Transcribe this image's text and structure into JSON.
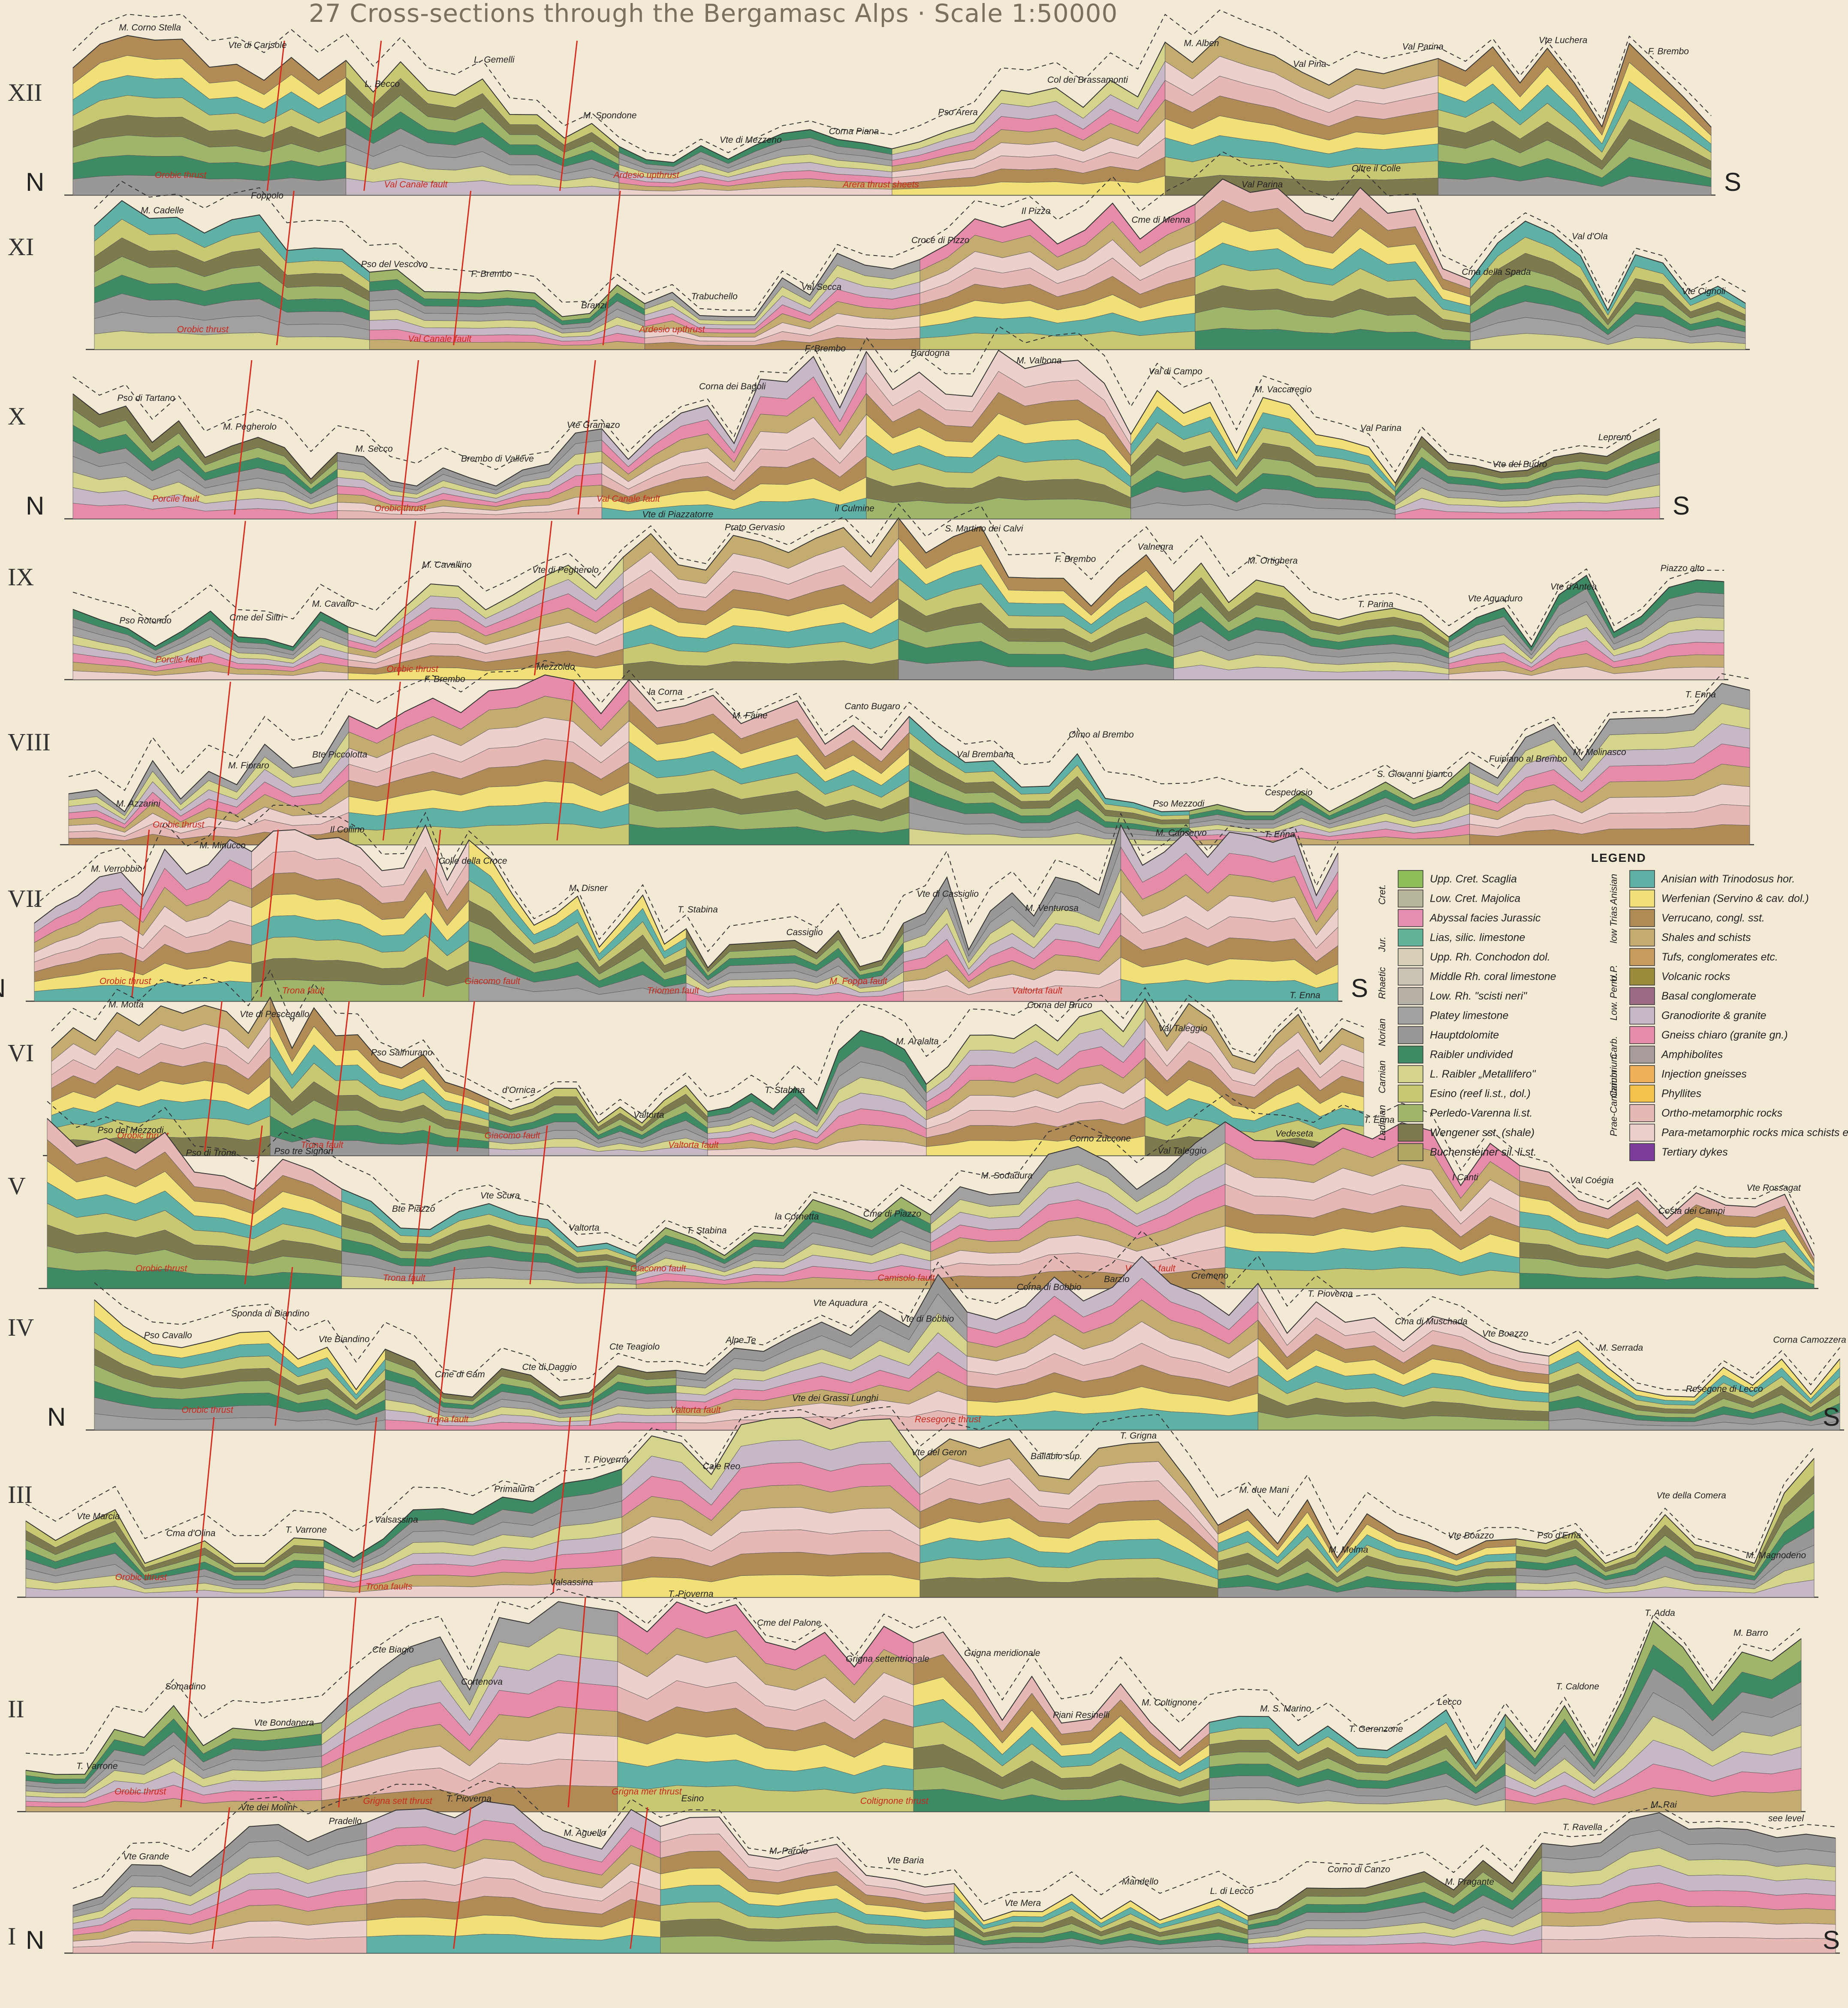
{
  "title": "27 Cross-sections through the Bergamasc Alps · Scale 1:50000",
  "direction": {
    "north": "N",
    "south": "S"
  },
  "colors": {
    "upp_cret_scaglia": "#8fbf5a",
    "low_cret_majolica": "#b7b59a",
    "abyssal_jurassic": "#e48fb1",
    "lias_silic": "#63b39a",
    "upp_rh_conchodon": "#d9cfb6",
    "middle_rh_coral": "#c9c3b6",
    "low_rh_scisti_neri": "#b6b0a6",
    "platey_limestone": "#a3a0a0",
    "hauptdolomite": "#999896",
    "raibler_undivided": "#3e8a65",
    "l_raibler": "#d4d48c",
    "esino": "#c9c872",
    "perledo_varenna": "#9fb56a",
    "wengener": "#7d7a4e",
    "buchensteiner": "#b2a664",
    "anisian": "#5fb0a5",
    "werfenian": "#f1df78",
    "verrucano": "#b08b56",
    "shales_schists": "#c4ab70",
    "tufs": "#c69c5c",
    "volcanic": "#9a8c3a",
    "basal_cong": "#9a6b83",
    "granodiorite": "#c7b8c5",
    "gneiss_chiaro": "#e78ca8",
    "amphibolites": "#a79c9b",
    "injection_gneisses": "#f0b05a",
    "phyllites": "#f2c24a",
    "ortho_meta": "#e6b8b5",
    "para_meta": "#ecd0cb",
    "tertiary_dykes": "#7b3c9c",
    "fault_red": "#d82a1e"
  },
  "sections": [
    {
      "id": "XII",
      "labels": [
        "M. Corno Stella",
        "Vte di Carisole",
        "L. Becco",
        "L. Gemelli",
        "M. Spondone",
        "Vte di Mezzeno",
        "Corna Piana",
        "Pso Arera",
        "Col dei Brassamonti",
        "M. Alben",
        "Val Pina",
        "Val Parina",
        "Vte Luchera",
        "F. Brembo"
      ],
      "red_labels": [
        "Orobic thrust",
        "Val Canale fault",
        "Ardesio upthrust",
        "Arera thrust sheets"
      ],
      "dir_n": "N",
      "dir_s": "S"
    },
    {
      "id": "XI",
      "labels": [
        "M. Cadelle",
        "Foppolo",
        "Pso del Vescovo",
        "F. Brembo",
        "Branzi",
        "Trabuchello",
        "Val Secca",
        "Croce di Pizzo",
        "Il Pizzo",
        "Cme di Menna",
        "Val Parina",
        "Oltre il Colle",
        "Cma della Spada",
        "Val d'Ola",
        "Vte Cignoli"
      ],
      "red_labels": [
        "Orobic thrust",
        "Val Canale fault",
        "Ardesio upthrust"
      ]
    },
    {
      "id": "X",
      "labels": [
        "Pso di Tartano",
        "M. Pegherolo",
        "M. Secco",
        "Brembo di Valleve",
        "Vte Gramazo",
        "Corna dei Bagoli",
        "F. Brembo",
        "Bordogna",
        "M. Valbona",
        "Val di Campo",
        "M. Vaccaregio",
        "Val Parina",
        "Vte del Budro",
        "Lepreno"
      ],
      "red_labels": [
        "Porcile fault",
        "Orobic thrust",
        "Val Canale fault"
      ],
      "dir_n": "N",
      "dir_s": "S"
    },
    {
      "id": "IX",
      "labels": [
        "Pso Rotondo",
        "Cme del Siltri",
        "M. Cavallo",
        "M. Cavallino",
        "Vte di Pegherolo",
        "Vte di Piazzatorre",
        "Prato Gervasio",
        "il Culmine",
        "S. Martino dei Calvi",
        "F. Brembo",
        "Valnegra",
        "M. Ortighera",
        "T. Parina",
        "Vte Aquaduro",
        "Vte d'Antea",
        "Piazzo alto"
      ],
      "red_labels": [
        "Porcile fault",
        "Orobic thrust"
      ]
    },
    {
      "id": "VIII",
      "labels": [
        "M. Azzarini",
        "M. Fioraro",
        "Bte Piccolotta",
        "F. Brembo",
        "Mezzoldo",
        "la Corna",
        "M. Faine",
        "Canto Bugaro",
        "Val Brembana",
        "Olmo al Brembo",
        "Pso Mezzodi",
        "Cespedosio",
        "S. Giovanni bianco",
        "Fuipiano al Brembo",
        "M. Molinasco",
        "T. Enna"
      ],
      "red_labels": [
        "Orobic thrust"
      ]
    },
    {
      "id": "VII",
      "labels": [
        "M. Verrobbio",
        "M. Minucco",
        "Il Collino",
        "Colle della Croce",
        "M. Disner",
        "T. Stabina",
        "Cassiglio",
        "Vte di Cassiglio",
        "M. Venturosa",
        "M. Canservo",
        "T. Enna"
      ],
      "red_labels": [
        "Orobic thrust",
        "Trona fault",
        "Giacomo fault",
        "Triomen fault",
        "M. Foppa fault",
        "Valtorta fault"
      ],
      "dir_n": "N",
      "dir_s": "S"
    },
    {
      "id": "VI",
      "labels": [
        "M. Motta",
        "Vte di Pescegallo",
        "Pso Salmurano",
        "d'Ornica",
        "Valtorta",
        "T. Stabina",
        "M. Aralalta",
        "Corna del Bruco",
        "Val Taleggio",
        "T. Enna"
      ],
      "red_labels": [
        "Orobic thrust",
        "Trona fault",
        "Giacomo fault",
        "Valtorta fault"
      ]
    },
    {
      "id": "V",
      "labels": [
        "Pso del Mezzodi",
        "Pso di Trona",
        "Pso tre Signori",
        "Bte Piazzo",
        "Vte Scura",
        "Valtorta",
        "T. Stabina",
        "la Cornetta",
        "Cme di Piazzo",
        "M. Sodadura",
        "Corno Zuccone",
        "Val Taleggio",
        "Vedeseta",
        "T. Enna",
        "I Canti",
        "Val Coégia",
        "Costa dei Campi",
        "Vte Rossagat"
      ],
      "red_labels": [
        "Orobic thrust",
        "Trona fault",
        "Giacomo fault",
        "Camisolo fault",
        "Valtorta fault"
      ]
    },
    {
      "id": "IV",
      "labels": [
        "Pso Cavallo",
        "Sponda di Biandino",
        "Vte Biandino",
        "Cme di Cam",
        "Cte di Daggio",
        "Cte Teagiolo",
        "Alpe Te",
        "Vte Aquadura",
        "Vte di Bobbio",
        "Corna di Bobbio",
        "Barzio",
        "Cremeno",
        "T. Pioverna",
        "Cma di Muschada",
        "Vte Boazzo",
        "M. Serrada",
        "Resegone di Lecco",
        "Corna Camozzera"
      ],
      "red_labels": [
        "Orobic thrust",
        "Trona fault",
        "Valtorta fault",
        "Resegone thrust"
      ],
      "dir_n": "N",
      "dir_s": "S"
    },
    {
      "id": "III",
      "labels": [
        "Vte Marcia",
        "Cma d'Olina",
        "T. Varrone",
        "Valsassina",
        "Primaluna",
        "T. Pioverna",
        "Cale Reo",
        "Vte dei Grassi Lunghi",
        "Vte del Geron",
        "Ballabio sup.",
        "T. Grigna",
        "M. due Mani",
        "M. Melma",
        "Vte Boazzo",
        "Pso d'Erna",
        "Vte della Comera",
        "M. Magnodeno"
      ],
      "red_labels": [
        "Orobic thrust",
        "Trona faults"
      ]
    },
    {
      "id": "II",
      "labels": [
        "T. Varrone",
        "Somadino",
        "Vte Bondanera",
        "Cte Biagio",
        "Cortenova",
        "Valsassina",
        "T. Pioverna",
        "Cme del Palone",
        "Grigna settentrionale",
        "Grigna meridionale",
        "Piani Resinelli",
        "M. Coltignone",
        "M. S. Marino",
        "T. Gerenzone",
        "Lecco",
        "T. Caldone",
        "T. Adda",
        "M. Barro"
      ],
      "red_labels": [
        "Orobic thrust",
        "Grigna sett thrust",
        "Grigna mer thrust",
        "Coltignone thrust"
      ]
    },
    {
      "id": "I",
      "labels": [
        "Vte Grande",
        "Vte dei Molini",
        "Pradello",
        "T. Pioverna",
        "M. Aguello",
        "Esino",
        "M. Parolo",
        "Vte Baria",
        "Vte Mera",
        "Mandello",
        "L. di Lecco",
        "Corno di Canzo",
        "M. Pragante",
        "T. Ravella",
        "M. Rai",
        "see level"
      ],
      "dir_n": "N",
      "dir_s": "S"
    }
  ],
  "legend": {
    "title": "LEGEND",
    "groups": [
      "Cret.",
      "Jur.",
      "Rhaetic",
      "Norian",
      "Carnian",
      "Ladinian",
      "Anisian",
      "low Trias",
      "U.P.",
      "Low. Perm.",
      "Carb.",
      "Cambrium",
      "Prae-Cambrium"
    ],
    "left": [
      {
        "color": "upp_cret_scaglia",
        "label": "Upp. Cret. Scaglia"
      },
      {
        "color": "low_cret_majolica",
        "label": "Low. Cret. Majolica"
      },
      {
        "color": "abyssal_jurassic",
        "label": "Abyssal facies Jurassic"
      },
      {
        "color": "lias_silic",
        "label": "Lias, silic. limestone"
      },
      {
        "color": "upp_rh_conchodon",
        "label": "Upp. Rh. Conchodon dol."
      },
      {
        "color": "middle_rh_coral",
        "label": "Middle Rh. coral limestone"
      },
      {
        "color": "low_rh_scisti_neri",
        "label": "Low. Rh. \"scisti neri\""
      },
      {
        "color": "platey_limestone",
        "label": "Platey limestone"
      },
      {
        "color": "hauptdolomite",
        "label": "Hauptdolomite"
      },
      {
        "color": "raibler_undivided",
        "label": "Raibler undivided"
      },
      {
        "color": "l_raibler",
        "label": "L. Raibler „Metallifero\""
      },
      {
        "color": "esino",
        "label": "Esino (reef li.st., dol.)"
      },
      {
        "color": "perledo_varenna",
        "label": "Perledo-Varenna li.st."
      },
      {
        "color": "wengener",
        "label": "Wengener sst. (shale)"
      },
      {
        "color": "buchensteiner",
        "label": "Buchensteiner sil. li.st."
      }
    ],
    "right": [
      {
        "color": "anisian",
        "label": "Anisian with Trinodosus hor."
      },
      {
        "color": "werfenian",
        "label": "Werfenian (Servino & cav. dol.)"
      },
      {
        "color": "verrucano",
        "label": "Verrucano, congl. sst."
      },
      {
        "color": "shales_schists",
        "label": "Shales and schists"
      },
      {
        "color": "tufs",
        "label": "Tufs, conglomerates etc."
      },
      {
        "color": "volcanic",
        "label": "Volcanic rocks"
      },
      {
        "color": "basal_cong",
        "label": "Basal conglomerate"
      },
      {
        "color": "granodiorite",
        "label": "Granodiorite & granite"
      },
      {
        "color": "gneiss_chiaro",
        "label": "Gneiss chiaro (granite gn.)"
      },
      {
        "color": "amphibolites",
        "label": "Amphibolites"
      },
      {
        "color": "injection_gneisses",
        "label": "Injection gneisses"
      },
      {
        "color": "phyllites",
        "label": "Phyllites"
      },
      {
        "color": "ortho_meta",
        "label": "Ortho-metamorphic rocks"
      },
      {
        "color": "para_meta",
        "label": "Para-metamorphic rocks mica schists etc."
      },
      {
        "color": "tertiary_dykes",
        "label": "Tertiary dykes"
      }
    ]
  }
}
